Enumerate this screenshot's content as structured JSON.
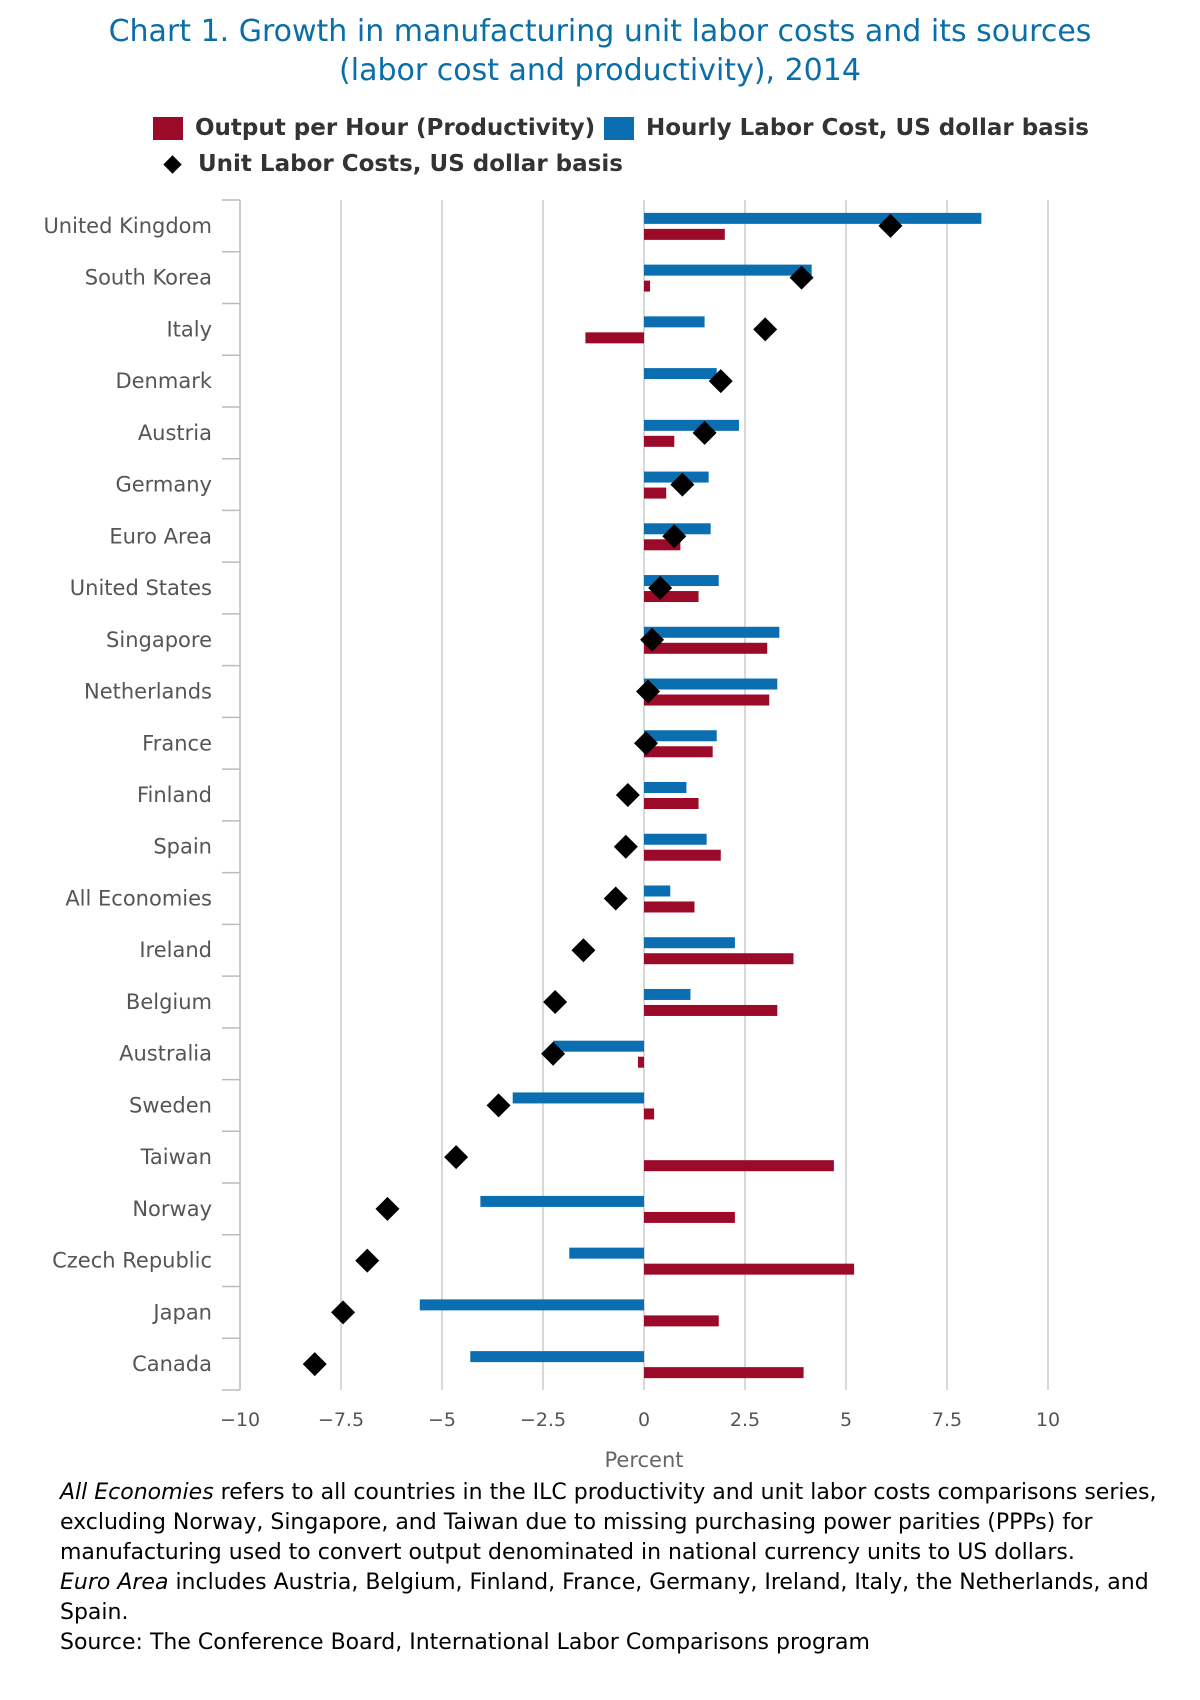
{
  "title": {
    "line1": "Chart 1. Growth in manufacturing unit labor costs and its sources",
    "line2": "(labor cost and productivity), 2014"
  },
  "colors": {
    "productivity": "#9b0a28",
    "labor_cost": "#0a6eb0",
    "ulc": "#000000",
    "title": "#0a6ea8",
    "grid": "#cccccc"
  },
  "chart_data": {
    "type": "bar",
    "orientation": "horizontal",
    "xlabel": "Percent",
    "xlim": [
      -10,
      10
    ],
    "xticks": [
      -10,
      -7.5,
      -5,
      -2.5,
      0,
      2.5,
      5,
      7.5,
      10
    ],
    "xtick_labels": [
      "−10",
      "−7.5",
      "−5",
      "−2.5",
      "0",
      "2.5",
      "5",
      "7.5",
      "10"
    ],
    "grid": true,
    "legend_position": "top",
    "categories": [
      "United Kingdom",
      "South Korea",
      "Italy",
      "Denmark",
      "Austria",
      "Germany",
      "Euro Area",
      "United States",
      "Singapore",
      "Netherlands",
      "France",
      "Finland",
      "Spain",
      "All Economies",
      "Ireland",
      "Belgium",
      "Australia",
      "Sweden",
      "Taiwan",
      "Norway",
      "Czech Republic",
      "Japan",
      "Canada"
    ],
    "series": [
      {
        "name": "Output per Hour (Productivity)",
        "kind": "bar",
        "values": [
          2.0,
          0.15,
          -1.45,
          0.0,
          0.75,
          0.55,
          0.9,
          1.35,
          3.05,
          3.1,
          1.7,
          1.35,
          1.9,
          1.25,
          3.7,
          3.3,
          -0.15,
          0.25,
          4.7,
          2.25,
          5.2,
          1.85,
          3.95
        ]
      },
      {
        "name": "Hourly Labor Cost, US dollar basis",
        "kind": "bar",
        "values": [
          8.35,
          4.15,
          1.5,
          1.8,
          2.35,
          1.6,
          1.65,
          1.85,
          3.35,
          3.3,
          1.8,
          1.05,
          1.55,
          0.65,
          2.25,
          1.15,
          -2.25,
          -3.25,
          0.0,
          -4.05,
          -1.85,
          -5.55,
          -4.3
        ]
      },
      {
        "name": "Unit Labor Costs, US dollar basis",
        "kind": "marker",
        "values": [
          6.1,
          3.9,
          3.0,
          1.9,
          1.5,
          0.95,
          0.75,
          0.4,
          0.2,
          0.1,
          0.05,
          -0.4,
          -0.45,
          -0.7,
          -1.5,
          -2.2,
          -2.25,
          -3.6,
          -4.65,
          -6.35,
          -6.85,
          -7.45,
          -8.15
        ]
      }
    ]
  },
  "footnote": {
    "p1_em": "All Economies",
    "p1_text": " refers to all countries in the ILC productivity and unit labor costs comparisons series, excluding Norway, Singapore, and Taiwan due to missing purchasing power parities (PPPs) for manufacturing used to convert output denominated in national currency units to US dollars.",
    "p2_em": "Euro Area",
    "p2_text": " includes Austria, Belgium, Finland, France, Germany, Ireland, Italy, the Netherlands, and Spain.",
    "source": "Source: The Conference Board, International Labor Comparisons program"
  }
}
